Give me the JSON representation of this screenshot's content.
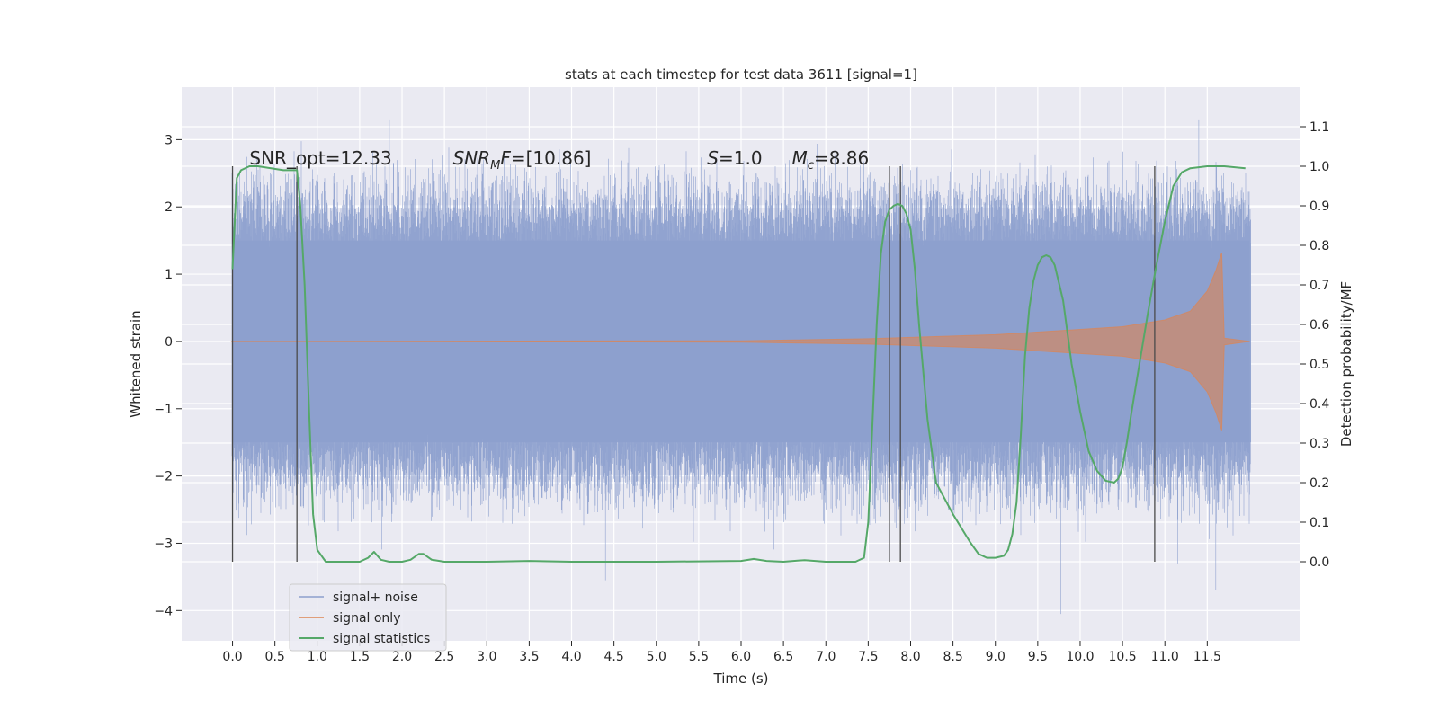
{
  "chart_data": {
    "type": "line",
    "title": "stats at each timestep for test data 3611 [signal=1]",
    "xlabel": "Time (s)",
    "ylabel": "Whitened strain",
    "ylabel_right": "Detection probability/MF",
    "xlim": [
      -0.6,
      12.6
    ],
    "ylim": [
      -4.45,
      3.78
    ],
    "ylim_right": [
      -0.2,
      1.2
    ],
    "grid": true,
    "legend_position": "lower-left",
    "xticks": [
      "0.0",
      "0.5",
      "1.0",
      "1.5",
      "2.0",
      "2.5",
      "3.0",
      "3.5",
      "4.0",
      "4.5",
      "5.0",
      "5.5",
      "6.0",
      "6.5",
      "7.0",
      "7.5",
      "8.0",
      "8.5",
      "9.0",
      "9.5",
      "10.0",
      "10.5",
      "11.0",
      "11.5"
    ],
    "yticks_left": [
      "3",
      "2",
      "1",
      "0",
      "−1",
      "−2",
      "−3",
      "−4"
    ],
    "yticks_right": [
      "1.1",
      "1.0",
      "0.9",
      "0.8",
      "0.7",
      "0.6",
      "0.5",
      "0.4",
      "0.3",
      "0.2",
      "0.1",
      "0.0"
    ],
    "annotations": [
      {
        "text": "SNR_opt=12.33"
      },
      {
        "text": "SNR",
        "sub": "M",
        "suffix": "F=[10.86]"
      },
      {
        "text": "S",
        "suffix": "=1.0"
      },
      {
        "text": "M",
        "sub": "c",
        "suffix": "=8.86"
      }
    ],
    "vertical_markers_s": [
      0.0,
      0.76,
      7.75,
      7.88,
      10.88
    ],
    "series": [
      {
        "name": "signal+ noise",
        "color": "#8c9fcd",
        "kind": "noise-band",
        "duration_s": 12.0,
        "envelope_typical": 1.5,
        "envelope_peak": 3.4,
        "notable_extrema": [
          {
            "x": 1.85,
            "y": 3.3
          },
          {
            "x": 3.0,
            "y": 3.2
          },
          {
            "x": 11.4,
            "y": 3.3
          },
          {
            "x": 11.65,
            "y": 3.4
          },
          {
            "x": 4.4,
            "y": -3.55
          },
          {
            "x": 9.77,
            "y": -4.05
          },
          {
            "x": 11.6,
            "y": -3.7
          },
          {
            "x": 11.15,
            "y": -3.3
          }
        ]
      },
      {
        "name": "signal only",
        "color": "#dd8452",
        "kind": "chirp",
        "amplitude_envelope": [
          [
            0.0,
            0.0
          ],
          [
            6.0,
            0.01
          ],
          [
            7.5,
            0.04
          ],
          [
            8.0,
            0.06
          ],
          [
            9.0,
            0.1
          ],
          [
            10.0,
            0.18
          ],
          [
            10.5,
            0.22
          ],
          [
            11.0,
            0.32
          ],
          [
            11.3,
            0.45
          ],
          [
            11.5,
            0.75
          ],
          [
            11.6,
            1.05
          ],
          [
            11.67,
            1.32
          ],
          [
            11.7,
            0.05
          ],
          [
            12.0,
            0.0
          ]
        ]
      },
      {
        "name": "signal statistics",
        "color": "#55a868",
        "axis": "right",
        "x": [
          0.0,
          0.05,
          0.1,
          0.2,
          0.3,
          0.6,
          0.7,
          0.76,
          0.8,
          0.85,
          0.9,
          0.95,
          1.0,
          1.1,
          1.5,
          1.6,
          1.67,
          1.75,
          1.85,
          2.0,
          2.1,
          2.2,
          2.25,
          2.35,
          2.5,
          3.0,
          3.5,
          4.0,
          5.0,
          6.0,
          6.15,
          6.3,
          6.5,
          6.75,
          7.0,
          7.35,
          7.45,
          7.5,
          7.55,
          7.6,
          7.65,
          7.7,
          7.75,
          7.8,
          7.85,
          7.9,
          7.95,
          8.0,
          8.05,
          8.1,
          8.2,
          8.3,
          8.5,
          8.7,
          8.8,
          8.9,
          9.0,
          9.1,
          9.15,
          9.2,
          9.25,
          9.3,
          9.35,
          9.4,
          9.45,
          9.5,
          9.55,
          9.6,
          9.65,
          9.7,
          9.8,
          9.9,
          10.0,
          10.1,
          10.2,
          10.3,
          10.4,
          10.45,
          10.5,
          10.55,
          10.6,
          10.7,
          10.8,
          10.9,
          11.0,
          11.1,
          11.2,
          11.3,
          11.5,
          11.7,
          11.95
        ],
        "values": [
          0.74,
          0.97,
          0.99,
          1.0,
          1.0,
          0.99,
          0.99,
          0.99,
          0.9,
          0.7,
          0.4,
          0.12,
          0.03,
          0.0,
          0.0,
          0.01,
          0.025,
          0.005,
          0.0,
          0.0,
          0.005,
          0.02,
          0.02,
          0.005,
          0.0,
          0.0,
          0.002,
          0.0,
          0.0,
          0.002,
          0.007,
          0.002,
          0.0,
          0.004,
          0.0,
          0.0,
          0.01,
          0.1,
          0.35,
          0.6,
          0.78,
          0.86,
          0.89,
          0.9,
          0.905,
          0.9,
          0.88,
          0.84,
          0.74,
          0.6,
          0.36,
          0.2,
          0.12,
          0.05,
          0.02,
          0.01,
          0.01,
          0.015,
          0.03,
          0.07,
          0.15,
          0.32,
          0.52,
          0.64,
          0.71,
          0.75,
          0.77,
          0.775,
          0.77,
          0.75,
          0.66,
          0.5,
          0.38,
          0.28,
          0.23,
          0.205,
          0.2,
          0.21,
          0.24,
          0.3,
          0.37,
          0.5,
          0.63,
          0.75,
          0.86,
          0.95,
          0.985,
          0.995,
          1.0,
          1.0,
          0.995
        ]
      }
    ]
  }
}
